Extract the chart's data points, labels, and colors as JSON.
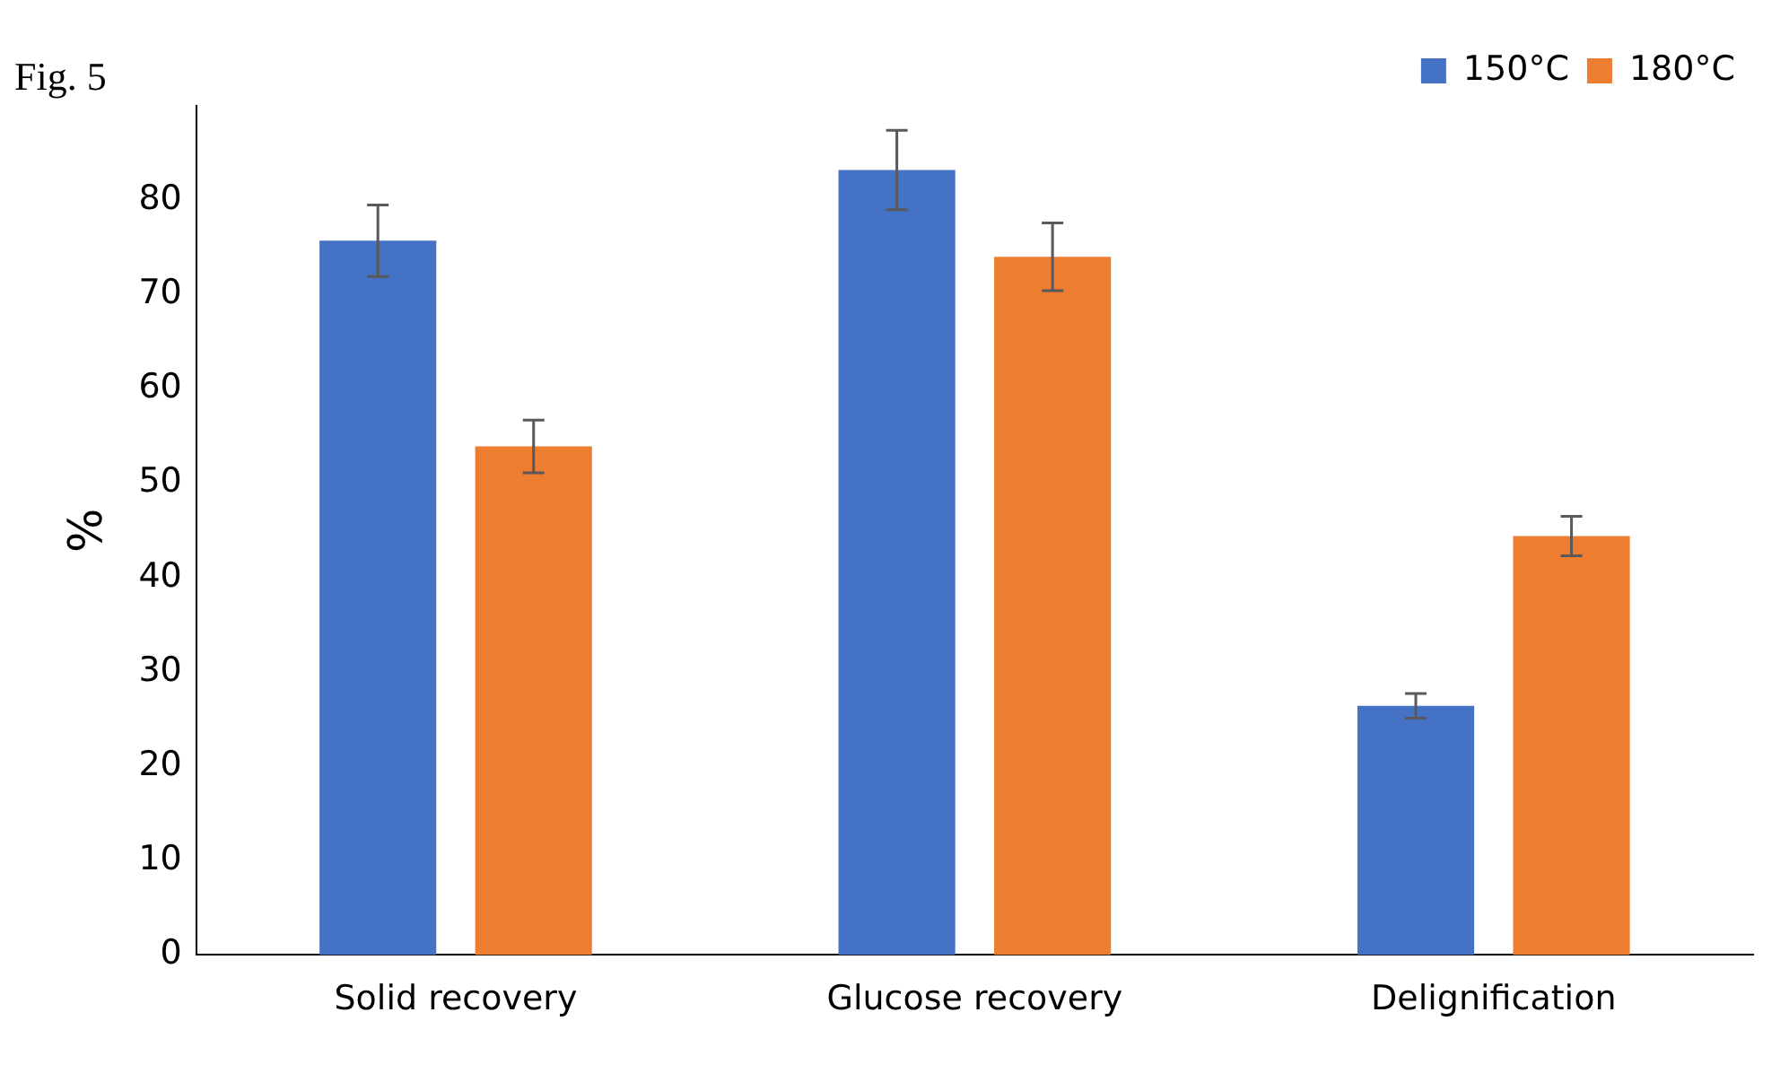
{
  "chart_data": {
    "type": "bar",
    "ylabel": "%",
    "annotations": [
      "Fig. 5"
    ],
    "categories": [
      "Solid recovery",
      "Glucose recovery",
      "Delignification"
    ],
    "series": [
      {
        "name": "150°C",
        "color": "#4472c4",
        "values": [
          75.7,
          83.2,
          26.4
        ],
        "errors": [
          3.8,
          4.2,
          1.3
        ]
      },
      {
        "name": "180°C",
        "color": "#ed7d31",
        "values": [
          53.9,
          74.0,
          44.4
        ],
        "errors": [
          2.8,
          3.6,
          2.1
        ]
      }
    ],
    "ylim": [
      0,
      90
    ],
    "yticks": [
      0,
      10,
      20,
      30,
      40,
      50,
      60,
      70,
      80
    ],
    "grid": false,
    "legend": "top right"
  }
}
